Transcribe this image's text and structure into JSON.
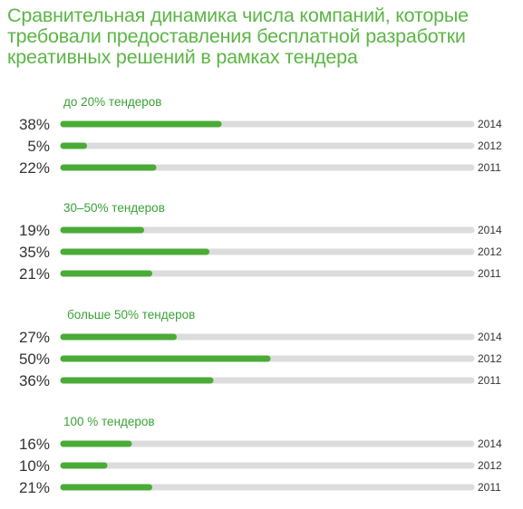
{
  "chart_data": {
    "type": "bar",
    "orientation": "horizontal",
    "title_lines": [
      "Сравнительная динамика числа компаний, которые",
      "требовали предоставления бесплатной разработки",
      "креативных решений в рамках тендера"
    ],
    "xlim": [
      0,
      100
    ],
    "groups": [
      {
        "label": "до 20% тендеров",
        "rows": [
          {
            "year": "2014",
            "value": 38,
            "value_label": "38%"
          },
          {
            "year": "2012",
            "value": 5,
            "value_label": "5%"
          },
          {
            "year": "2011",
            "value": 22,
            "value_label": "22%"
          }
        ]
      },
      {
        "label": "30–50% тендеров",
        "rows": [
          {
            "year": "2014",
            "value": 19,
            "value_label": "19%"
          },
          {
            "year": "2012",
            "value": 35,
            "value_label": "35%"
          },
          {
            "year": "2011",
            "value": 21,
            "value_label": "21%"
          }
        ]
      },
      {
        "label": "больше 50% тендеров",
        "rows": [
          {
            "year": "2014",
            "value": 27,
            "value_label": "27%"
          },
          {
            "year": "2012",
            "value": 50,
            "value_label": "50%"
          },
          {
            "year": "2011",
            "value": 36,
            "value_label": "36%"
          }
        ]
      },
      {
        "label": "100 % тендеров",
        "rows": [
          {
            "year": "2014",
            "value": 16,
            "value_label": "16%"
          },
          {
            "year": "2012",
            "value": 10,
            "value_label": "10%"
          },
          {
            "year": "2011",
            "value": 21,
            "value_label": "21%"
          }
        ]
      }
    ],
    "colors": {
      "bar": "#4aab37",
      "track": "#dcdcdc",
      "title": "#5cb646",
      "group_label": "#3aa236"
    }
  }
}
